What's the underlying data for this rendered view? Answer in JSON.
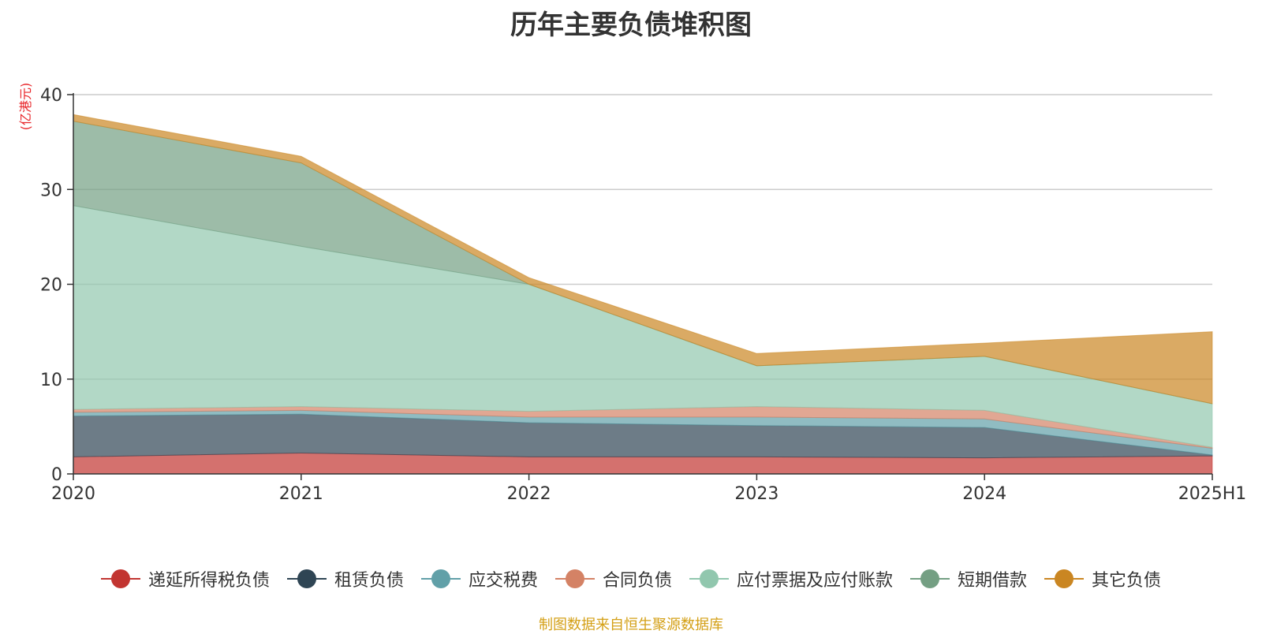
{
  "chart_data": {
    "type": "area",
    "title": "历年主要负债堆积图",
    "unit": "(亿港元)",
    "xlabel": "",
    "ylabel": "(亿港元)",
    "categories": [
      "2020",
      "2021",
      "2022",
      "2023",
      "2024",
      "2025H1"
    ],
    "ylim": [
      0,
      40
    ],
    "yticks": [
      0,
      10,
      20,
      30,
      40
    ],
    "stacked": true,
    "grid": true,
    "legend_position": "bottom",
    "series": [
      {
        "name": "递延所得税负债",
        "color": "#c23531",
        "values": [
          1.8,
          2.2,
          1.8,
          1.8,
          1.7,
          1.9
        ]
      },
      {
        "name": "租赁负债",
        "color": "#2f4554",
        "values": [
          4.3,
          4.1,
          3.6,
          3.3,
          3.2,
          0.1
        ]
      },
      {
        "name": "应交税费",
        "color": "#61a0a8",
        "values": [
          0.4,
          0.4,
          0.6,
          0.9,
          0.9,
          0.7
        ]
      },
      {
        "name": "合同负债",
        "color": "#d48265",
        "values": [
          0.3,
          0.4,
          0.6,
          1.1,
          0.9,
          0.1
        ]
      },
      {
        "name": "应付票据及应付账款",
        "color": "#91c7ae",
        "values": [
          21.5,
          16.9,
          13.4,
          4.3,
          5.7,
          4.6
        ]
      },
      {
        "name": "短期借款",
        "color": "#749f83",
        "values": [
          8.9,
          8.8,
          0.0,
          0.0,
          0.0,
          0.0
        ]
      },
      {
        "name": "其它负债",
        "color": "#ca8622",
        "values": [
          0.7,
          0.7,
          0.7,
          1.3,
          1.4,
          7.6
        ]
      }
    ]
  },
  "source_text": "制图数据来自恒生聚源数据库"
}
